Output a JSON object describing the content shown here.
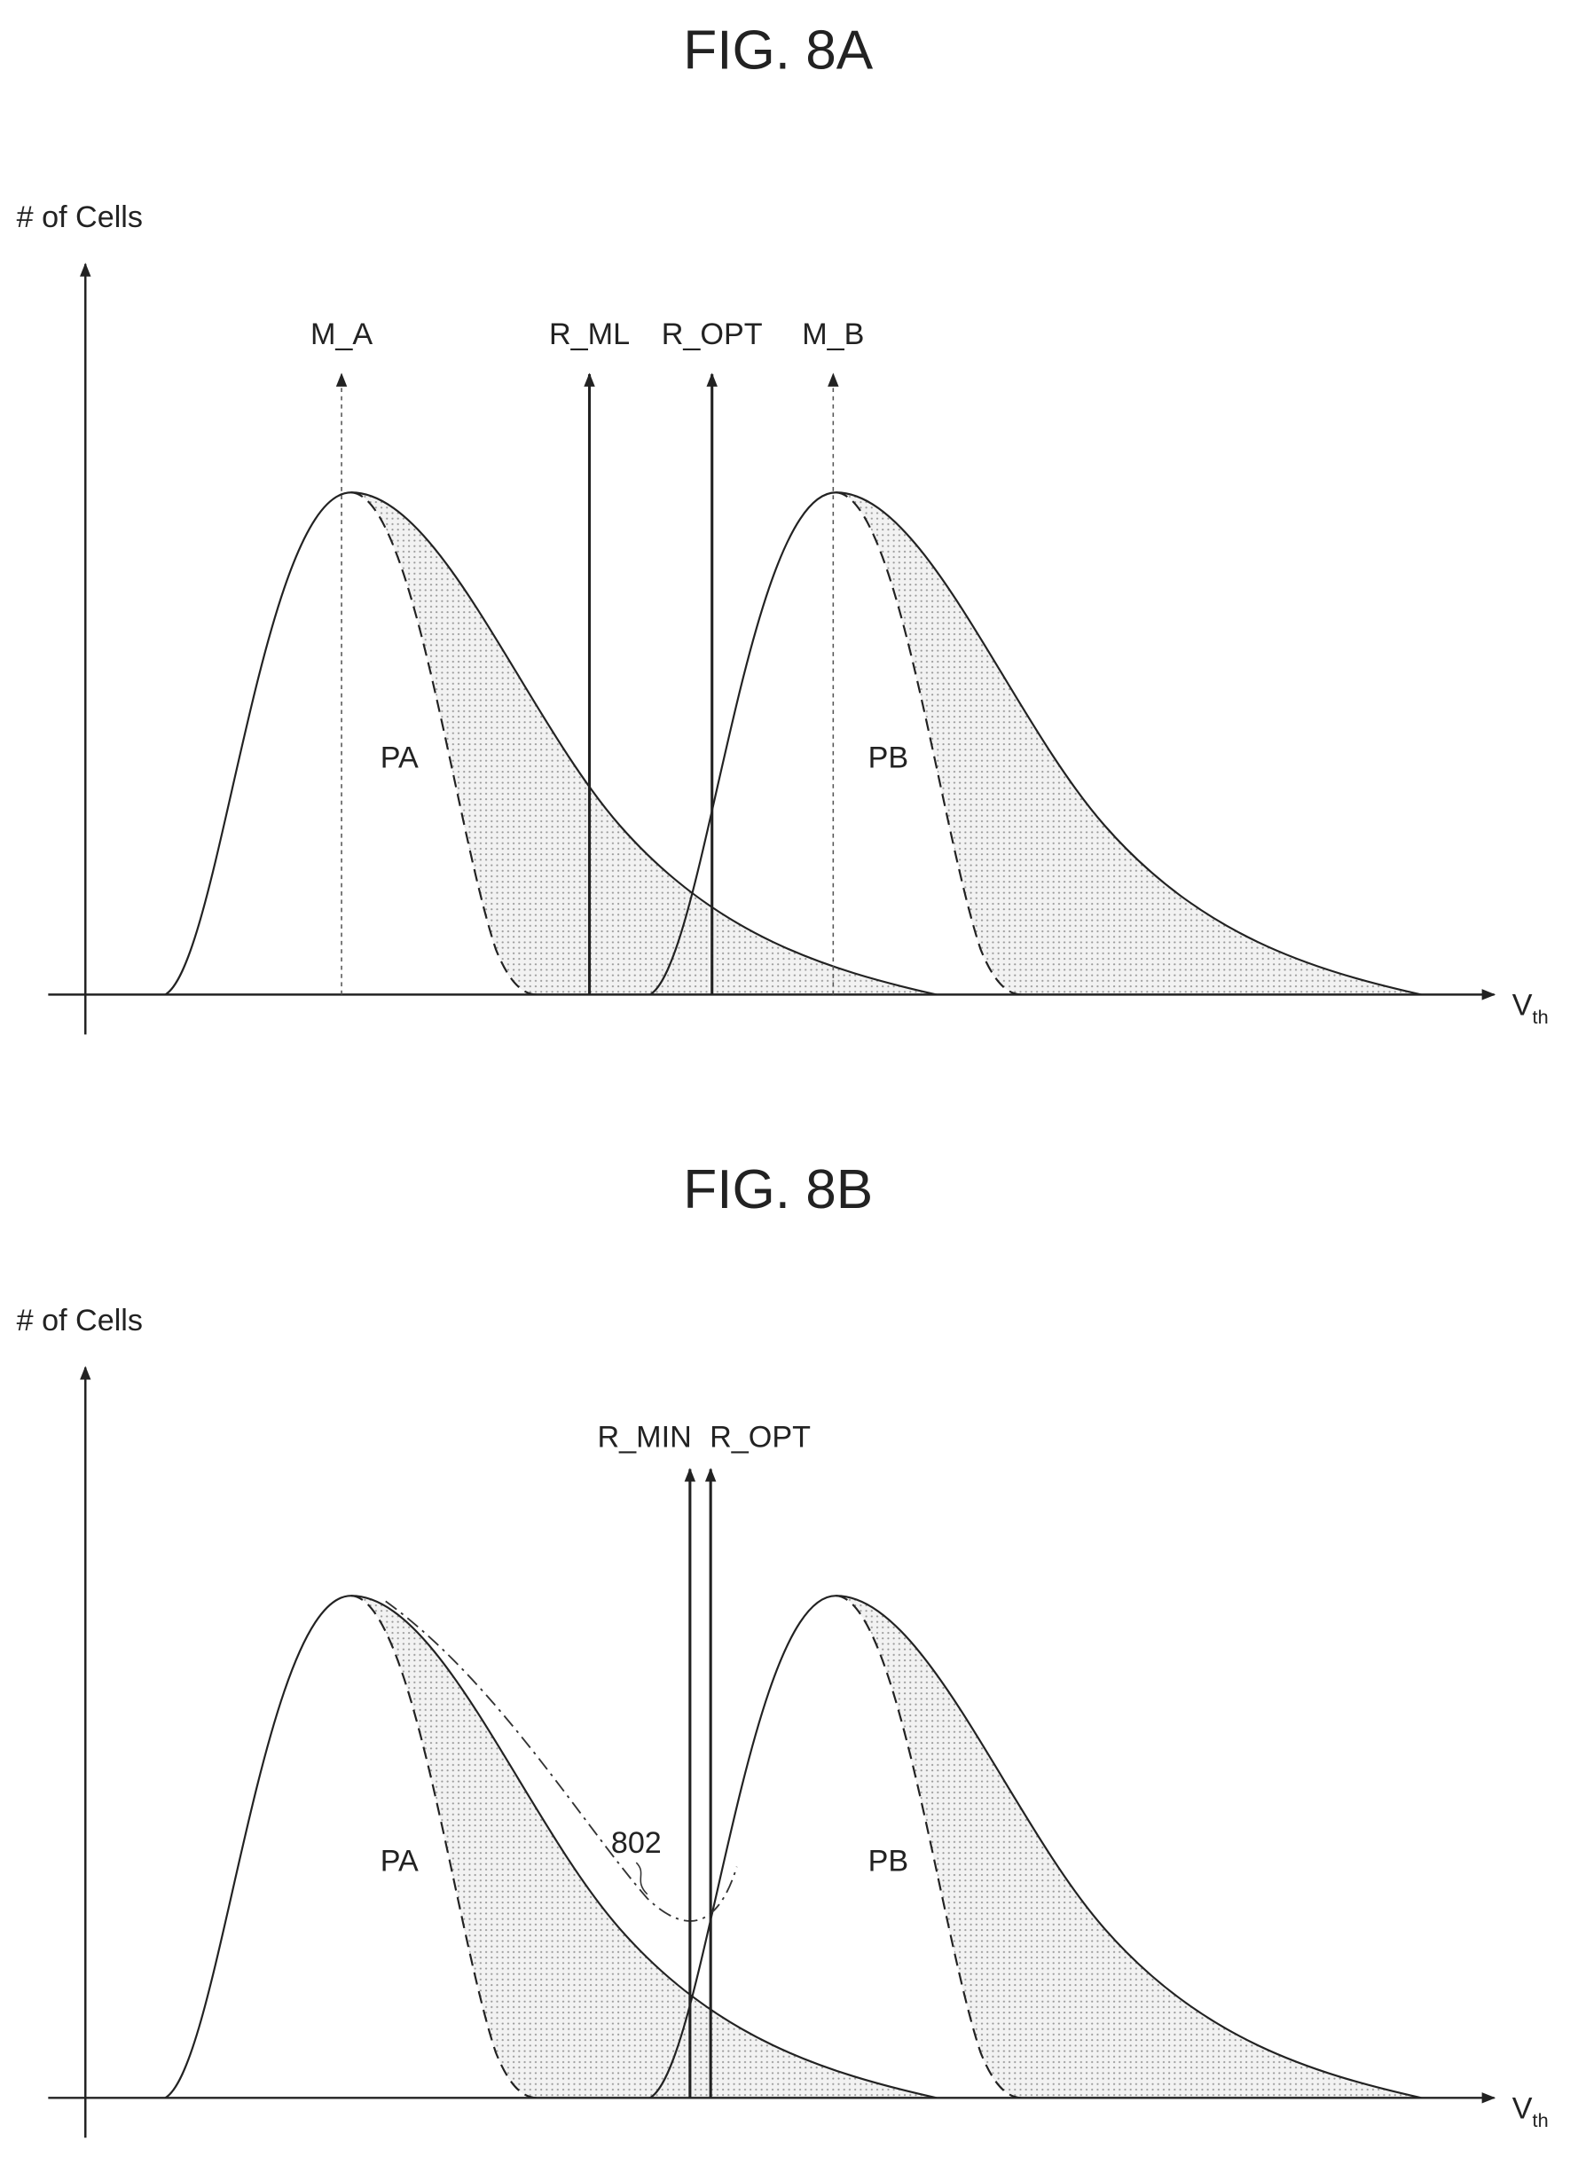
{
  "figures": [
    {
      "title": "FIG. 8A",
      "y_axis_label": "# of Cells",
      "x_axis_label": {
        "main": "V",
        "sub": "th"
      },
      "read_lines": [
        "M_A",
        "R_ML",
        "R_OPT",
        "M_B"
      ],
      "regions": [
        "PA",
        "PB"
      ]
    },
    {
      "title": "FIG. 8B",
      "y_axis_label": "# of Cells",
      "x_axis_label": {
        "main": "V",
        "sub": "th"
      },
      "read_lines": [
        "R_MIN",
        "R_OPT"
      ],
      "regions": [
        "PA",
        "PB"
      ],
      "annotation": "802"
    }
  ]
}
